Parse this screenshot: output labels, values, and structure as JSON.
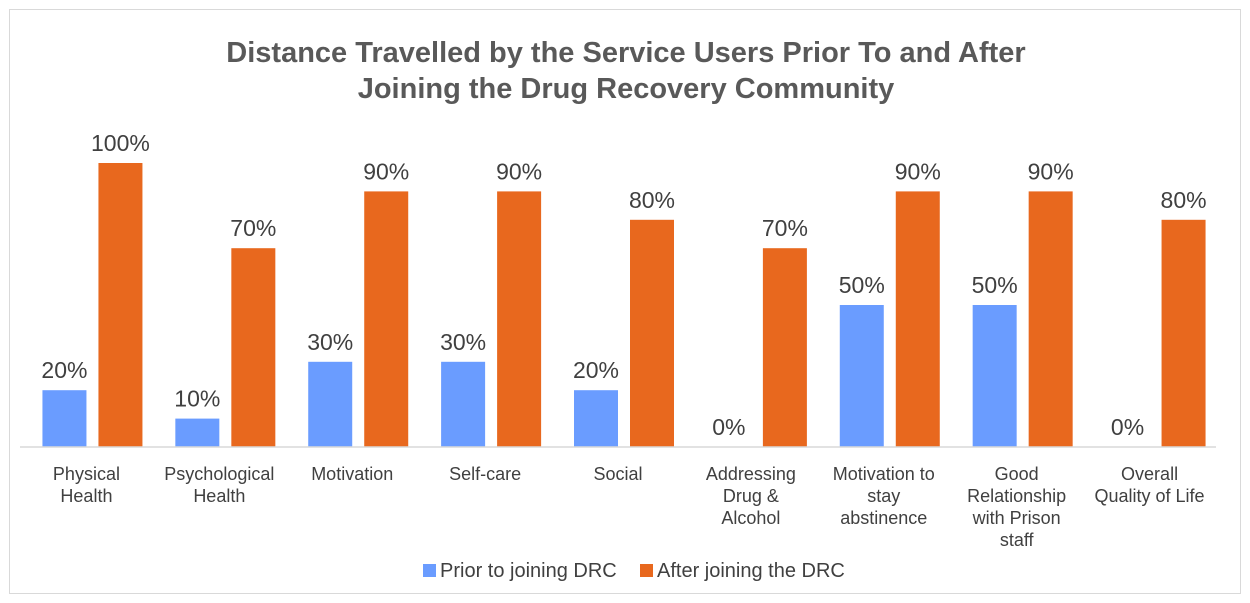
{
  "chart_data": {
    "type": "bar",
    "title_lines": [
      "Distance Travelled by the Service Users Prior To and After",
      "Joining the Drug Recovery Community"
    ],
    "categories": [
      [
        "Physical",
        "Health"
      ],
      [
        "Psychological",
        "Health"
      ],
      [
        "Motivation"
      ],
      [
        "Self-care"
      ],
      [
        "Social"
      ],
      [
        "Addressing",
        "Drug &",
        "Alcohol"
      ],
      [
        "Motivation to",
        "stay",
        "abstinence"
      ],
      [
        "Good",
        "Relationship",
        "with Prison",
        "staff"
      ],
      [
        "Overall",
        "Quality of Life"
      ]
    ],
    "series": [
      {
        "name": "Prior to joining DRC",
        "color": "#6a9cff",
        "values": [
          20,
          10,
          30,
          30,
          20,
          0,
          50,
          50,
          0
        ],
        "labels": [
          "20%",
          "10%",
          "30%",
          "30%",
          "20%",
          "0%",
          "50%",
          "50%",
          "0%"
        ]
      },
      {
        "name": "After joining the DRC",
        "color": "#e8681e",
        "values": [
          100,
          70,
          90,
          90,
          80,
          70,
          90,
          90,
          80
        ],
        "labels": [
          "100%",
          "70%",
          "90%",
          "90%",
          "80%",
          "70%",
          "90%",
          "90%",
          "80%"
        ]
      }
    ],
    "ylim": [
      0,
      100
    ],
    "grid": false,
    "legend_position": "bottom",
    "axis_color": "#d9d9d9"
  }
}
